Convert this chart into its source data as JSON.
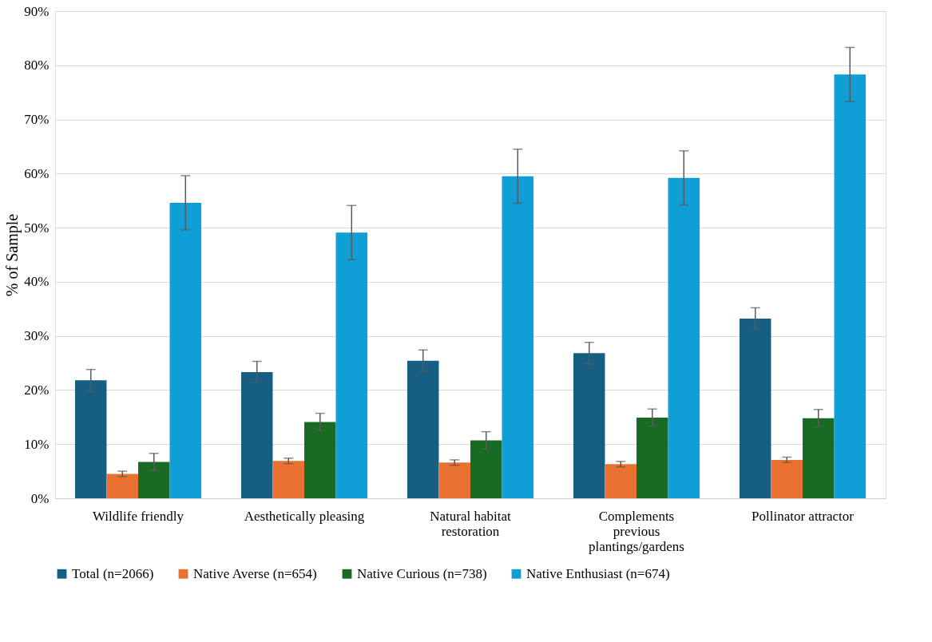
{
  "chart_data": {
    "type": "bar",
    "ylabel": "% of Sample",
    "categories": [
      "Wildlife friendly",
      "Aesthetically pleasing",
      "Natural habitat restoration",
      "Complements previous plantings/gardens",
      "Pollinator attractor"
    ],
    "series": [
      {
        "name": "Total (n=2066)",
        "color": "#175e83",
        "values": [
          21.8,
          23.3,
          25.4,
          26.8,
          33.2
        ],
        "errors": [
          2,
          2,
          2,
          2,
          2
        ]
      },
      {
        "name": "Native Averse (n=654)",
        "color": "#e97132",
        "values": [
          4.5,
          6.9,
          6.6,
          6.3,
          7.1
        ],
        "errors": [
          0.5,
          0.5,
          0.5,
          0.5,
          0.5
        ]
      },
      {
        "name": "Native Curious (n=738)",
        "color": "#196b24",
        "values": [
          6.7,
          14.1,
          10.7,
          14.9,
          14.8
        ],
        "errors": [
          1.6,
          1.6,
          1.6,
          1.6,
          1.6
        ]
      },
      {
        "name": "Native Enthusiast (n=674)",
        "color": "#0f9ed5",
        "values": [
          54.6,
          49.1,
          59.5,
          59.2,
          78.3
        ],
        "errors": [
          5,
          5,
          5,
          5,
          5
        ]
      }
    ],
    "ylim": [
      0,
      90
    ],
    "yticks": [
      {
        "value": 0,
        "label": "0%"
      },
      {
        "value": 10,
        "label": "10%"
      },
      {
        "value": 20,
        "label": "20%"
      },
      {
        "value": 30,
        "label": "30%"
      },
      {
        "value": 40,
        "label": "40%"
      },
      {
        "value": 50,
        "label": "50%"
      },
      {
        "value": 60,
        "label": "60%"
      },
      {
        "value": 70,
        "label": "70%"
      },
      {
        "value": 80,
        "label": "80%"
      },
      {
        "value": 90,
        "label": "90%"
      }
    ],
    "grid": "y",
    "legend": "bottom"
  }
}
